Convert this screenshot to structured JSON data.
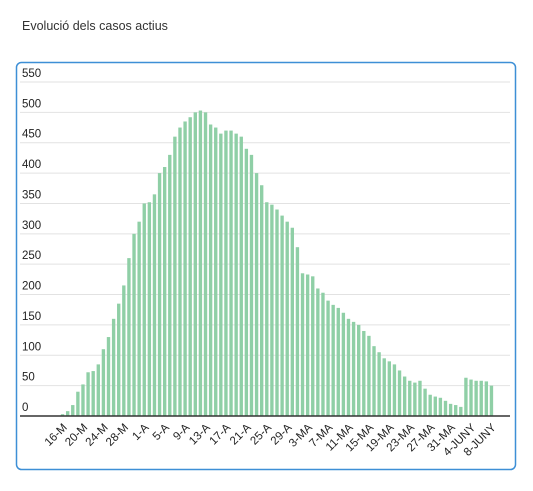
{
  "chart_data": {
    "type": "bar",
    "title": "Evolució dels casos actius",
    "categories": [
      "16-M",
      null,
      null,
      null,
      "20-M",
      null,
      null,
      null,
      "24-M",
      null,
      null,
      null,
      "28-M",
      null,
      null,
      null,
      "1-A",
      null,
      null,
      null,
      "5-A",
      null,
      null,
      null,
      "9-A",
      null,
      null,
      null,
      "13-A",
      null,
      null,
      null,
      "17-A",
      null,
      null,
      null,
      "21-A",
      null,
      null,
      null,
      "25-A",
      null,
      null,
      null,
      "29-A",
      null,
      null,
      null,
      "3-MA",
      null,
      null,
      null,
      "7-MA",
      null,
      null,
      null,
      "11-MA",
      null,
      null,
      null,
      "15-MA",
      null,
      null,
      null,
      "19-MA",
      null,
      null,
      null,
      "23-MA",
      null,
      null,
      null,
      "27-MA",
      null,
      null,
      null,
      "31-MA",
      null,
      null,
      null,
      "4-JUNY",
      null,
      null,
      null,
      "8-JUNY"
    ],
    "values": [
      3,
      8,
      18,
      40,
      52,
      72,
      74,
      85,
      110,
      130,
      160,
      185,
      215,
      260,
      300,
      320,
      350,
      352,
      365,
      400,
      410,
      430,
      460,
      475,
      485,
      492,
      500,
      503,
      500,
      480,
      475,
      465,
      470,
      470,
      465,
      460,
      440,
      430,
      400,
      380,
      352,
      348,
      340,
      330,
      320,
      310,
      278,
      235,
      233,
      230,
      210,
      203,
      190,
      183,
      178,
      170,
      160,
      155,
      150,
      140,
      132,
      115,
      105,
      95,
      90,
      85,
      75,
      65,
      58,
      55,
      58,
      45,
      35,
      32,
      30,
      25,
      20,
      18,
      15,
      63,
      60,
      58,
      58,
      57,
      50
    ],
    "color": "#8fcfa6",
    "ylim": [
      0,
      550
    ],
    "yticks": [
      0,
      50,
      100,
      150,
      200,
      250,
      300,
      350,
      400,
      450,
      500,
      550
    ],
    "grid": true
  }
}
